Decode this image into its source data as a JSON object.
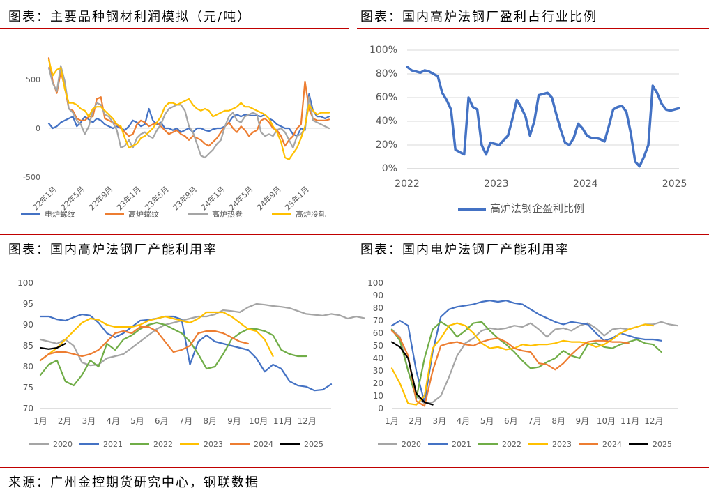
{
  "titles": {
    "p1": "图表：主要品种钢材利润模拟（元/吨）",
    "p2": "图表：国内高炉法钢厂盈利占行业比例",
    "p3": "图表：国内高炉法钢厂产能利用率",
    "p4": "图表：国内电炉法钢厂产能利用率"
  },
  "source": "来源：广州金控期货研究中心，钢联数据",
  "chart_data": [
    {
      "type": "line",
      "y_ticks": [
        "500",
        "0",
        "-500"
      ],
      "ylim": [
        -500,
        800
      ],
      "x_ticks": [
        "22年1月",
        "22年5月",
        "22年9月",
        "23年1月",
        "23年5月",
        "23年9月",
        "24年1月",
        "24年5月",
        "24年9月",
        "25年1月"
      ],
      "legend_position": "bottom",
      "grid": false,
      "colors": [
        "#4472c4",
        "#ed7d31",
        "#a5a5a5",
        "#ffc000"
      ],
      "series": [
        {
          "name": "电炉螺纹",
          "values": [
            50,
            0,
            20,
            60,
            80,
            100,
            120,
            20,
            60,
            120,
            90,
            60,
            100,
            80,
            40,
            20,
            0,
            20,
            0,
            -20,
            20,
            80,
            60,
            20,
            40,
            200,
            80,
            40,
            60,
            0,
            0,
            -20,
            0,
            -40,
            -20,
            0,
            -40,
            0,
            0,
            -20,
            -30,
            -10,
            0,
            0,
            20,
            60,
            120,
            140,
            120,
            140,
            130,
            130,
            130,
            120,
            140,
            100,
            80,
            40,
            20,
            0,
            0,
            -60,
            -80,
            0,
            -20,
            350,
            180,
            120,
            120,
            100,
            120
          ]
        },
        {
          "name": "高炉螺纹",
          "values": [
            720,
            480,
            360,
            580,
            420,
            200,
            180,
            100,
            80,
            80,
            120,
            120,
            300,
            320,
            100,
            80,
            60,
            40,
            0,
            -40,
            -80,
            -60,
            40,
            80,
            60,
            20,
            40,
            60,
            20,
            -20,
            -60,
            -40,
            -20,
            -60,
            -80,
            -120,
            -80,
            -100,
            -120,
            -160,
            -180,
            -140,
            -100,
            -40,
            20,
            60,
            0,
            -40,
            20,
            -20,
            -80,
            -40,
            -20,
            80,
            100,
            60,
            0,
            -20,
            -80,
            -180,
            -120,
            -80,
            0,
            40,
            480,
            200,
            100,
            80,
            80,
            80,
            90
          ]
        },
        {
          "name": "高炉热卷",
          "values": [
            620,
            460,
            380,
            640,
            480,
            200,
            160,
            80,
            40,
            -60,
            20,
            180,
            260,
            240,
            140,
            120,
            60,
            -20,
            -200,
            -180,
            -120,
            -200,
            -100,
            -60,
            -40,
            -80,
            -100,
            -20,
            40,
            140,
            200,
            220,
            240,
            240,
            180,
            20,
            -40,
            -160,
            -280,
            -300,
            -260,
            -220,
            -160,
            -120,
            20,
            120,
            160,
            80,
            60,
            120,
            140,
            160,
            140,
            -40,
            -80,
            -60,
            -80,
            -20,
            0,
            -40,
            -120,
            -200,
            -80,
            -60,
            0,
            320,
            80,
            60,
            40,
            20,
            0
          ]
        },
        {
          "name": "高炉冷轧",
          "values": [
            700,
            540,
            600,
            620,
            400,
            260,
            260,
            240,
            200,
            180,
            120,
            200,
            220,
            220,
            180,
            140,
            100,
            40,
            20,
            -100,
            -200,
            -180,
            -160,
            -100,
            -80,
            -40,
            0,
            60,
            120,
            220,
            260,
            260,
            240,
            260,
            280,
            300,
            240,
            200,
            180,
            200,
            180,
            120,
            140,
            160,
            180,
            180,
            200,
            220,
            260,
            220,
            220,
            200,
            180,
            160,
            140,
            100,
            20,
            -40,
            -140,
            -300,
            -320,
            -260,
            -200,
            -100,
            20,
            240,
            180,
            140,
            160,
            160,
            160
          ]
        }
      ]
    },
    {
      "type": "line",
      "y_ticks": [
        "100%",
        "80%",
        "60%",
        "40%",
        "20%",
        "0%"
      ],
      "ylim": [
        0,
        100
      ],
      "x_ticks": [
        "2022",
        "2023",
        "2024",
        "2025"
      ],
      "legend_position": "bottom",
      "grid": true,
      "colors": [
        "#4472c4"
      ],
      "series": [
        {
          "name": "高炉法钢企盈利比例",
          "values": [
            86,
            83,
            82,
            81,
            83,
            82,
            80,
            78,
            64,
            58,
            50,
            16,
            14,
            12,
            60,
            52,
            50,
            20,
            12,
            22,
            21,
            20,
            24,
            28,
            42,
            58,
            52,
            44,
            28,
            40,
            62,
            63,
            64,
            60,
            46,
            33,
            22,
            20,
            26,
            38,
            34,
            28,
            26,
            26,
            25,
            23,
            36,
            50,
            52,
            53,
            48,
            30,
            6,
            2,
            10,
            20,
            70,
            64,
            55,
            50,
            49,
            50,
            51
          ]
        }
      ]
    },
    {
      "type": "line",
      "y_ticks": [
        "100",
        "95",
        "90",
        "85",
        "80",
        "75",
        "70"
      ],
      "ylim": [
        70,
        100
      ],
      "x_ticks": [
        "1月",
        "2月",
        "3月",
        "4月",
        "5月",
        "6月",
        "7月",
        "8月",
        "9月",
        "10月",
        "11月",
        "12月"
      ],
      "legend_position": "bottom",
      "grid": false,
      "colors": [
        "#a5a5a5",
        "#4472c4",
        "#70ad47",
        "#ffc000",
        "#ed7d31",
        "#000000"
      ],
      "series": [
        {
          "name": "2020",
          "values": [
            86.5,
            86,
            85.5,
            86.5,
            85,
            81,
            80.3,
            80.5,
            82,
            82.5,
            83,
            84.5,
            86,
            87.5,
            89,
            90,
            90.5,
            91,
            91.5,
            92,
            92,
            92.5,
            93.5,
            93.3,
            93,
            94.2,
            95,
            94.8,
            94.5,
            94.3,
            94,
            93.3,
            92.6,
            92.4,
            92.2,
            92.6,
            92.3,
            91.5,
            92,
            91.6
          ]
        },
        {
          "name": "2021",
          "values": [
            92,
            92,
            91.3,
            91,
            91.8,
            92.5,
            92.2,
            90.5,
            88,
            87,
            88,
            89.5,
            91,
            91.2,
            91.5,
            92,
            92,
            91.3,
            80.5,
            86,
            87.5,
            86,
            85.5,
            85,
            84.5,
            84,
            82,
            78.8,
            80.5,
            79.5,
            76.5,
            75.5,
            75.2,
            74.3,
            74.5,
            75.8
          ]
        },
        {
          "name": "2022",
          "values": [
            78,
            80.5,
            81.5,
            76.5,
            75.5,
            78,
            81.5,
            80,
            85.5,
            84,
            86.5,
            87.5,
            89,
            90,
            90.5,
            90,
            89,
            88,
            86,
            83,
            79.5,
            80,
            83,
            86.5,
            88,
            89,
            89,
            88.5,
            87.5,
            84,
            83,
            82.5,
            82.5
          ]
        },
        {
          "name": "2023",
          "values": [
            81.5,
            83,
            84.5,
            86.5,
            88.5,
            90.5,
            91.5,
            91.2,
            90,
            89.5,
            89.5,
            89.5,
            90,
            91,
            91.5,
            92,
            91.5,
            91,
            90.5,
            91.5,
            93,
            93,
            93,
            92,
            90.5,
            89,
            88.5,
            86.5,
            82.5
          ]
        },
        {
          "name": "2024",
          "values": [
            81.5,
            83,
            83.5,
            83.5,
            83,
            82.5,
            83,
            84,
            86,
            88,
            88.5,
            88,
            89.5,
            89.5,
            88.5,
            86,
            83.5,
            84,
            85,
            88,
            88.5,
            88.5,
            88,
            87,
            86,
            85.5
          ]
        },
        {
          "name": "2025",
          "values": [
            84.5,
            84.2,
            84.5,
            85.5
          ]
        }
      ]
    },
    {
      "type": "line",
      "y_ticks": [
        "100",
        "90",
        "80",
        "70",
        "60",
        "50",
        "40",
        "30",
        "20",
        "10",
        "0"
      ],
      "ylim": [
        0,
        100
      ],
      "x_ticks": [
        "1月",
        "2月",
        "3月",
        "4月",
        "5月",
        "6月",
        "7月",
        "8月",
        "9月",
        "10月",
        "11月",
        "12月"
      ],
      "legend_position": "bottom",
      "grid": false,
      "colors": [
        "#a5a5a5",
        "#4472c4",
        "#70ad47",
        "#ffc000",
        "#ed7d31",
        "#000000"
      ],
      "series": [
        {
          "name": "2020",
          "values": [
            63,
            57,
            30,
            10,
            4,
            5,
            10,
            25,
            42,
            52,
            56,
            62,
            64,
            63,
            64,
            66,
            65,
            68,
            63,
            57,
            63,
            64,
            62,
            66,
            68,
            64,
            58,
            63,
            64,
            63,
            65,
            67,
            67,
            69,
            67,
            66
          ]
        },
        {
          "name": "2021",
          "values": [
            66,
            70,
            66,
            30,
            5,
            45,
            73,
            79,
            81,
            82,
            83,
            85,
            86,
            85,
            86,
            84,
            83,
            79,
            75,
            72,
            69,
            67,
            69,
            68,
            67,
            60,
            54,
            56,
            60,
            58,
            56,
            55,
            55,
            54
          ]
        },
        {
          "name": "2022",
          "values": [
            63,
            54,
            30,
            8,
            40,
            63,
            69,
            65,
            57,
            62,
            68,
            69,
            62,
            56,
            51,
            45,
            38,
            32,
            33,
            37,
            40,
            46,
            42,
            40,
            51,
            52,
            49,
            48,
            51,
            53,
            55,
            52,
            51,
            45
          ]
        },
        {
          "name": "2023",
          "values": [
            32,
            20,
            4,
            3,
            10,
            48,
            56,
            66,
            68,
            66,
            60,
            52,
            48,
            49,
            47,
            48,
            51,
            50,
            51,
            51,
            52,
            54,
            53,
            53,
            52,
            49,
            51,
            55,
            60,
            63,
            65,
            67,
            66
          ]
        },
        {
          "name": "2024",
          "values": [
            62,
            56,
            42,
            6,
            2,
            30,
            50,
            52,
            53,
            51,
            50,
            53,
            55,
            56,
            53,
            48,
            46,
            45,
            36,
            35,
            31,
            36,
            43,
            49,
            53,
            54,
            54,
            53,
            53,
            52
          ]
        },
        {
          "name": "2025",
          "values": [
            53,
            49,
            40,
            12,
            5,
            3
          ]
        }
      ]
    }
  ]
}
